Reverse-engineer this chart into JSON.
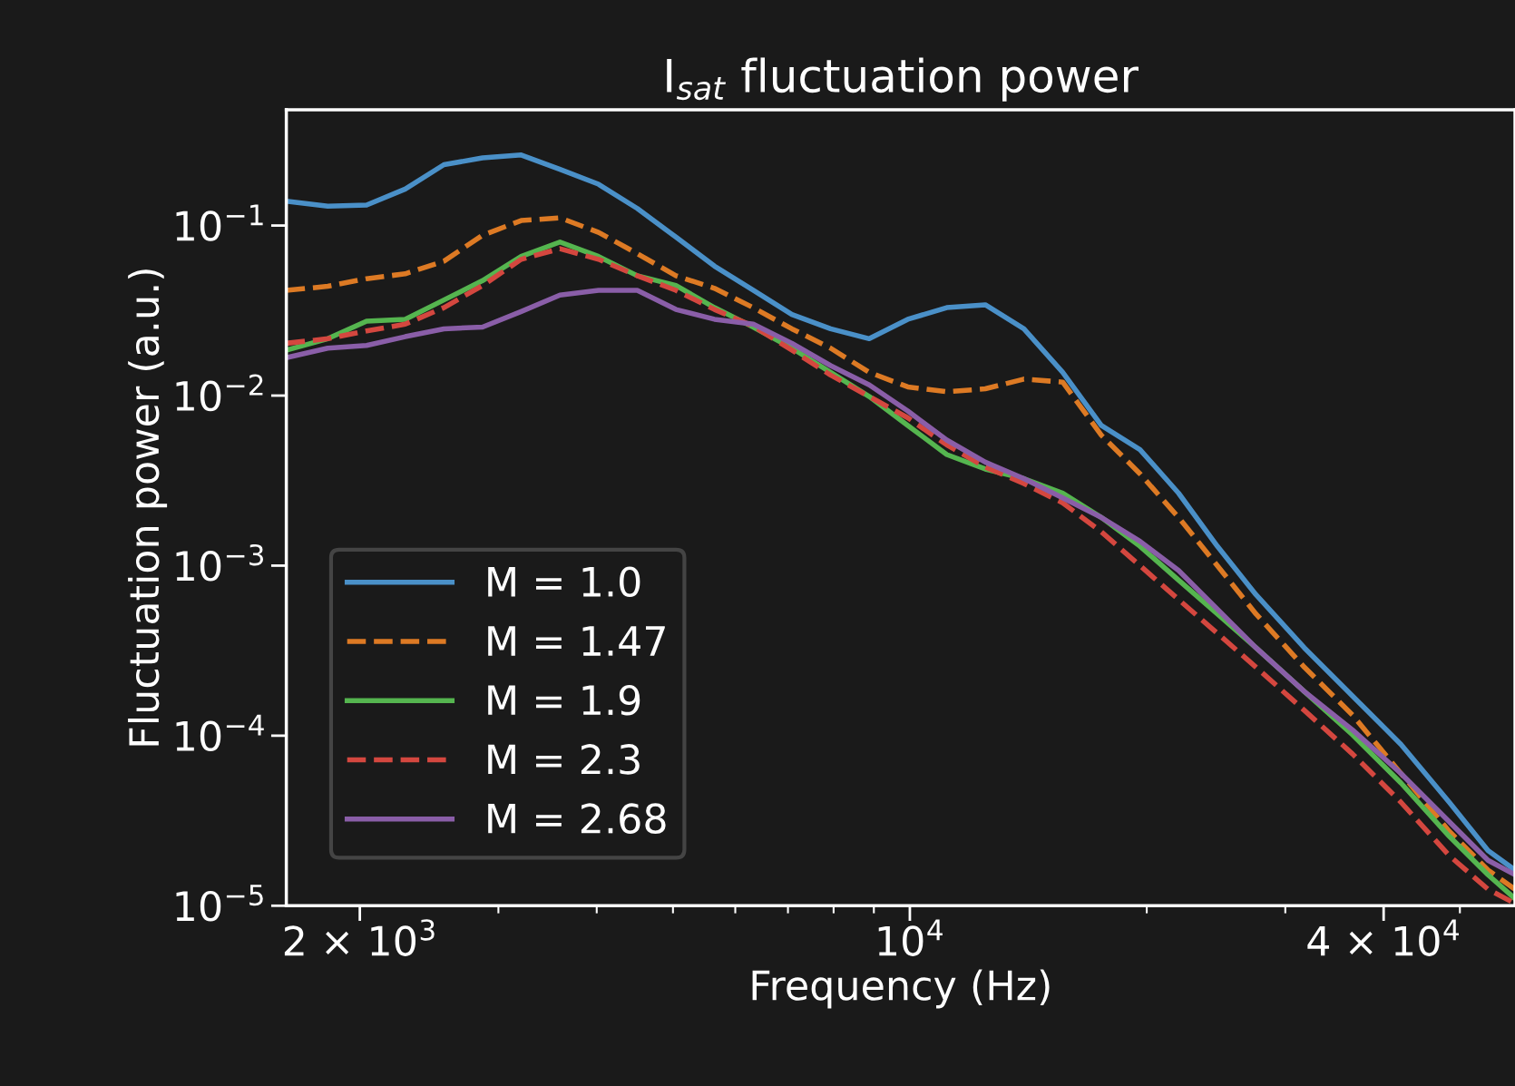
{
  "chart_data": {
    "type": "line",
    "title": "I$_{sat}$ fluctuation power",
    "xlabel": "Frequency (Hz)",
    "ylabel": "Fluctuation power (a.u.)",
    "log": "xy",
    "grid": false,
    "legend": "bottom left",
    "marker": "none",
    "x": [
      1613,
      1821,
      2040,
      2284,
      2558,
      2864,
      3207,
      3592,
      4021,
      4504,
      5043,
      5646,
      6324,
      7081,
      7930,
      8880,
      9940,
      11140,
      12470,
      13960,
      15640,
      17510,
      19610,
      21950,
      24590,
      27530,
      31710,
      36530,
      42080,
      48470,
      54290,
      58750
    ],
    "xlim": [
      1613,
      58750
    ],
    "ylim": [
      1e-05,
      0.48
    ],
    "xticks": [
      {
        "value": 2000,
        "label": "2 × 10$^{3}$"
      },
      {
        "value": 10000,
        "label": "10$^{4}$"
      },
      {
        "value": 40000,
        "label": "4 × 10$^{4}$"
      }
    ],
    "yticks": [
      {
        "value": 1e-05,
        "label": "10$^{−5}$"
      },
      {
        "value": 0.0001,
        "label": "10$^{−4}$"
      },
      {
        "value": 0.001,
        "label": "10$^{−3}$"
      },
      {
        "value": 0.01,
        "label": "10$^{−2}$"
      },
      {
        "value": 0.1,
        "label": "10$^{−1}$"
      }
    ],
    "series": [
      {
        "name": "M = 1.0",
        "color": "#4a90c8",
        "line_style": "solid",
        "values": [
          0.139,
          0.13,
          0.132,
          0.164,
          0.228,
          0.25,
          0.26,
          0.214,
          0.175,
          0.126,
          0.0855,
          0.0577,
          0.0416,
          0.03,
          0.0247,
          0.0216,
          0.0281,
          0.0329,
          0.0342,
          0.0247,
          0.0137,
          0.00667,
          0.00481,
          0.00267,
          0.0013,
          0.000675,
          0.000329,
          0.000171,
          8.89e-05,
          4.06e-05,
          2.11e-05,
          1.62e-05
        ]
      },
      {
        "name": "M = 1.47",
        "color": "#dd7a24",
        "line_style": "dashed",
        "values": [
          0.0416,
          0.0439,
          0.0487,
          0.052,
          0.0617,
          0.0877,
          0.107,
          0.111,
          0.0912,
          0.0684,
          0.0507,
          0.0427,
          0.0329,
          0.0247,
          0.019,
          0.0137,
          0.01125,
          0.01054,
          0.01096,
          0.0125,
          0.012,
          0.00585,
          0.00347,
          0.00192,
          0.001,
          0.00052,
          0.000253,
          0.000132,
          6e-05,
          2.74e-05,
          1.62e-05,
          1.25e-05
        ]
      },
      {
        "name": "M = 1.9",
        "color": "#55b54f",
        "line_style": "solid",
        "values": [
          0.0185,
          0.0216,
          0.0274,
          0.0281,
          0.0365,
          0.0474,
          0.0658,
          0.08,
          0.0658,
          0.0507,
          0.0444,
          0.0329,
          0.0253,
          0.019,
          0.0137,
          0.00987,
          0.00667,
          0.0045,
          0.0037,
          0.00325,
          0.00267,
          0.00192,
          0.0013,
          0.000822,
          0.00052,
          0.000329,
          0.000182,
          0.000101,
          5.27e-05,
          2.56e-05,
          1.52e-05,
          1.1e-05
        ]
      },
      {
        "name": "M = 2.3",
        "color": "#d4473f",
        "line_style": "dashed",
        "values": [
          0.0203,
          0.0216,
          0.024,
          0.0263,
          0.0329,
          0.0444,
          0.0633,
          0.0731,
          0.0633,
          0.0507,
          0.0416,
          0.0321,
          0.0256,
          0.0185,
          0.0132,
          0.00987,
          0.0074,
          0.00513,
          0.0038,
          0.00304,
          0.00234,
          0.00158,
          0.001,
          0.000632,
          0.0004,
          0.000253,
          0.000141,
          7.8e-05,
          4.06e-05,
          1.97e-05,
          1.25e-05,
          1.03e-05
        ]
      },
      {
        "name": "M = 2.68",
        "color": "#8a5ea8",
        "line_style": "solid",
        "values": [
          0.0167,
          0.019,
          0.0197,
          0.0222,
          0.0247,
          0.0253,
          0.0312,
          0.039,
          0.0416,
          0.0416,
          0.0321,
          0.0281,
          0.0263,
          0.0203,
          0.015,
          0.01155,
          0.00811,
          0.00548,
          0.00406,
          0.00325,
          0.0025,
          0.00192,
          0.00139,
          0.000937,
          0.000555,
          0.000329,
          0.000182,
          0.000108,
          6e-05,
          3.12e-05,
          1.85e-05,
          1.52e-05
        ]
      }
    ]
  }
}
